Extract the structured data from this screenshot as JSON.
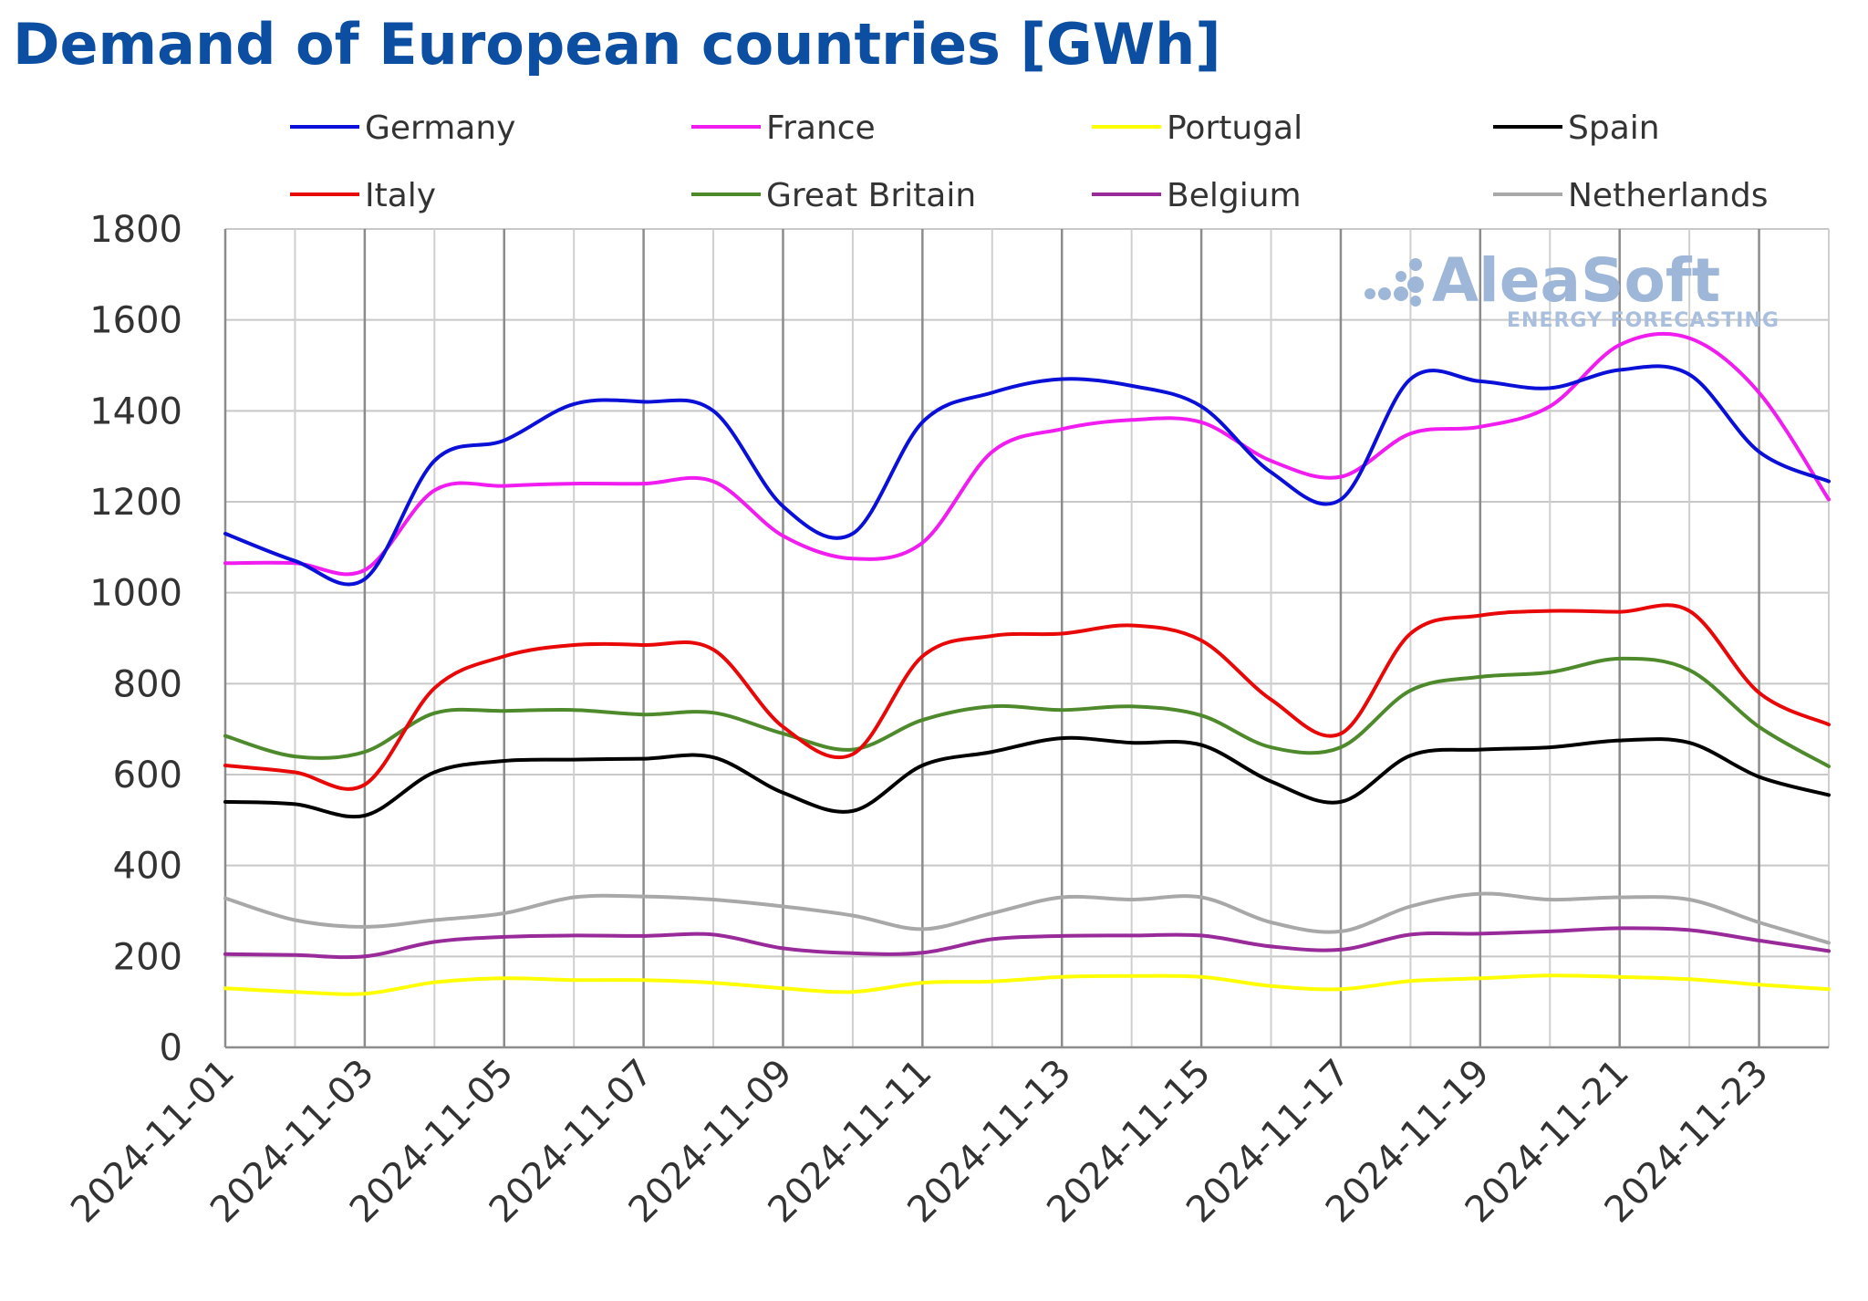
{
  "chart_data": {
    "type": "line",
    "title": "Demand of European countries [GWh]",
    "xlabel": "",
    "ylabel": "",
    "ylim": [
      0,
      1800
    ],
    "yticks": [
      0,
      200,
      400,
      600,
      800,
      1000,
      1200,
      1400,
      1600,
      1800
    ],
    "grid": true,
    "legend_position": "top",
    "x": [
      "2024-11-01",
      "2024-11-02",
      "2024-11-03",
      "2024-11-04",
      "2024-11-05",
      "2024-11-06",
      "2024-11-07",
      "2024-11-08",
      "2024-11-09",
      "2024-11-10",
      "2024-11-11",
      "2024-11-12",
      "2024-11-13",
      "2024-11-14",
      "2024-11-15",
      "2024-11-16",
      "2024-11-17",
      "2024-11-18",
      "2024-11-19",
      "2024-11-20",
      "2024-11-21",
      "2024-11-22",
      "2024-11-23",
      "2024-11-24"
    ],
    "xtick_labels": [
      "2024-11-01",
      "2024-11-03",
      "2024-11-05",
      "2024-11-07",
      "2024-11-09",
      "2024-11-11",
      "2024-11-13",
      "2024-11-15",
      "2024-11-17",
      "2024-11-19",
      "2024-11-21",
      "2024-11-23"
    ],
    "series": [
      {
        "name": "Germany",
        "color": "#0a10d8",
        "values": [
          1130,
          1070,
          1030,
          1290,
          1335,
          1415,
          1420,
          1400,
          1190,
          1130,
          1375,
          1440,
          1470,
          1455,
          1410,
          1265,
          1205,
          1470,
          1465,
          1450,
          1490,
          1480,
          1310,
          1245
        ]
      },
      {
        "name": "France",
        "color": "#f01cf0",
        "values": [
          1065,
          1065,
          1050,
          1225,
          1235,
          1240,
          1240,
          1245,
          1125,
          1075,
          1110,
          1310,
          1360,
          1380,
          1375,
          1290,
          1255,
          1350,
          1365,
          1410,
          1545,
          1560,
          1440,
          1205
        ]
      },
      {
        "name": "Portugal",
        "color": "#ffff00",
        "values": [
          130,
          122,
          118,
          143,
          152,
          148,
          148,
          142,
          130,
          122,
          142,
          145,
          155,
          157,
          155,
          135,
          128,
          146,
          152,
          158,
          155,
          150,
          138,
          128
        ]
      },
      {
        "name": "Spain",
        "color": "#000000",
        "values": [
          540,
          535,
          510,
          605,
          630,
          633,
          635,
          638,
          560,
          520,
          620,
          650,
          680,
          670,
          665,
          585,
          540,
          642,
          655,
          660,
          675,
          670,
          595,
          555
        ]
      },
      {
        "name": "Italy",
        "color": "#e80808",
        "values": [
          620,
          605,
          578,
          790,
          860,
          885,
          885,
          875,
          705,
          645,
          860,
          905,
          910,
          928,
          895,
          765,
          690,
          910,
          950,
          960,
          958,
          960,
          780,
          710
        ]
      },
      {
        "name": "Great Britain",
        "color": "#4e8a2c",
        "values": [
          685,
          640,
          650,
          735,
          740,
          742,
          732,
          736,
          690,
          655,
          720,
          750,
          742,
          750,
          730,
          660,
          660,
          785,
          815,
          825,
          855,
          830,
          705,
          618
        ]
      },
      {
        "name": "Belgium",
        "color": "#992a99",
        "values": [
          205,
          203,
          200,
          232,
          243,
          246,
          245,
          248,
          218,
          207,
          208,
          238,
          245,
          246,
          246,
          222,
          215,
          248,
          250,
          255,
          262,
          258,
          235,
          212
        ]
      },
      {
        "name": "Netherlands",
        "color": "#a8a8a8",
        "values": [
          328,
          280,
          265,
          280,
          295,
          330,
          332,
          325,
          310,
          290,
          260,
          295,
          330,
          325,
          330,
          275,
          255,
          310,
          338,
          325,
          330,
          325,
          275,
          230
        ]
      }
    ]
  },
  "watermark": {
    "brand": "AleaSoft",
    "tagline": "ENERGY FORECASTING"
  }
}
